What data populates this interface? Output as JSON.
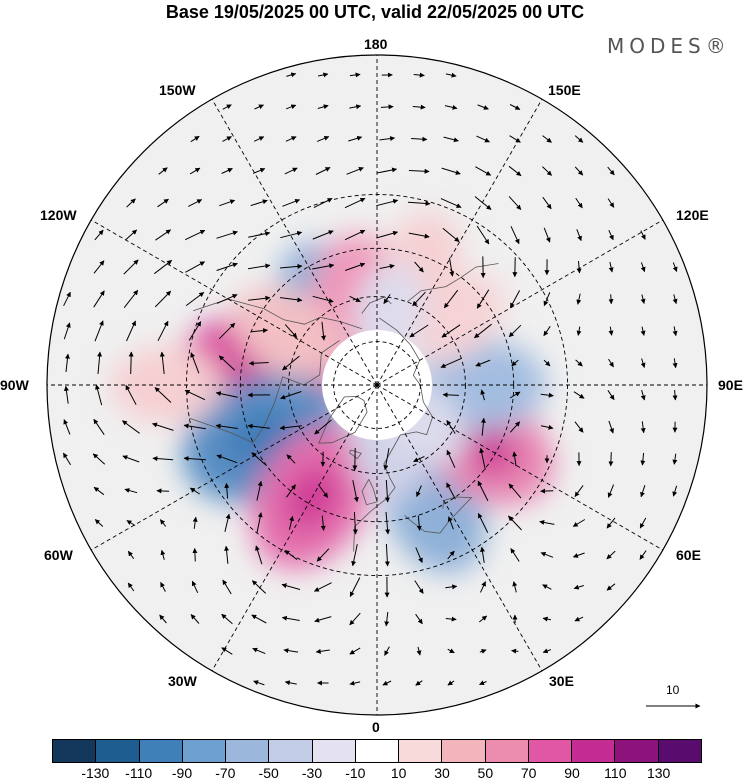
{
  "title": "Base 19/05/2025 00 UTC, valid 22/05/2025 00 UTC",
  "brand": "MODES®",
  "longitude_labels": [
    "180",
    "150E",
    "120E",
    "90E",
    "60E",
    "30E",
    "0",
    "30W",
    "60W",
    "90W",
    "120W",
    "150W"
  ],
  "reference_vector_label": "10",
  "colorbar": {
    "colors": [
      "#14385c",
      "#1e5d8f",
      "#3f80b9",
      "#6da0cf",
      "#9bb8dc",
      "#c3cce6",
      "#e4e2f0",
      "#ffffff",
      "#f8dada",
      "#f3b4bc",
      "#ec8db0",
      "#e256a6",
      "#c32d93",
      "#8c137c",
      "#5a0c6e"
    ],
    "tick_labels": [
      "-130",
      "-110",
      "-90",
      "-70",
      "-50",
      "-30",
      "-10",
      "10",
      "30",
      "50",
      "70",
      "90",
      "110",
      "130"
    ]
  },
  "anomaly_centers": [
    {
      "lat": 58,
      "lon": -150,
      "value": -45,
      "color": "#8fb0d8"
    },
    {
      "lat": 62,
      "lon": -170,
      "value": 55,
      "color": "#ef97b9"
    },
    {
      "lat": 50,
      "lon": -95,
      "value": 85,
      "color": "#d94aa0"
    },
    {
      "lat": 48,
      "lon": -65,
      "value": -85,
      "color": "#5a8fc4"
    },
    {
      "lat": 47,
      "lon": -30,
      "value": 70,
      "color": "#e46fae"
    },
    {
      "lat": 45,
      "lon": 25,
      "value": -50,
      "color": "#8fb0d8"
    },
    {
      "lat": 48,
      "lon": 60,
      "value": 60,
      "color": "#e886b2"
    },
    {
      "lat": 55,
      "lon": 90,
      "value": -45,
      "color": "#a3bde0"
    },
    {
      "lat": 55,
      "lon": 130,
      "value": 20,
      "color": "#f6d3d6"
    },
    {
      "lat": 48,
      "lon": 160,
      "value": 25,
      "color": "#f6d0d3"
    },
    {
      "lat": 55,
      "lon": -120,
      "value": 30,
      "color": "#f3c0c4"
    },
    {
      "lat": 25,
      "lon": -90,
      "value": 25,
      "color": "#f6cfd2"
    },
    {
      "lat": 68,
      "lon": 10,
      "value": -20,
      "color": "#d0d2e8"
    },
    {
      "lat": 70,
      "lon": 50,
      "value": -15,
      "color": "#dcdcec"
    },
    {
      "lat": 65,
      "lon": 170,
      "value": -15,
      "color": "#dedcec"
    }
  ]
}
